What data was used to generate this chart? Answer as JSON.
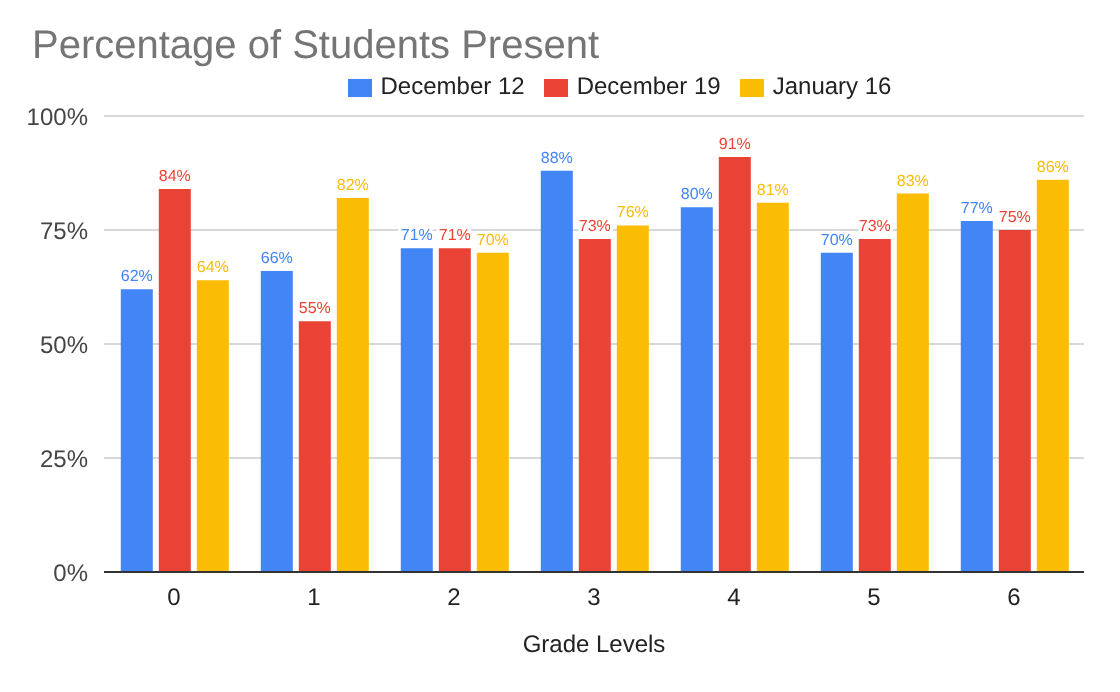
{
  "chart_data": {
    "type": "bar",
    "title": "Percentage of Students Present",
    "xlabel": "Grade Levels",
    "categories": [
      "0",
      "1",
      "2",
      "3",
      "4",
      "5",
      "6"
    ],
    "series": [
      {
        "name": "December 12",
        "color": "#4285f4",
        "values": [
          62,
          66,
          71,
          88,
          80,
          70,
          77
        ],
        "value_labels": [
          "62%",
          "66%",
          "71%",
          "88%",
          "80%",
          "70%",
          "77%"
        ]
      },
      {
        "name": "December 19",
        "color": "#ea4335",
        "values": [
          84,
          55,
          71,
          73,
          91,
          73,
          75
        ],
        "value_labels": [
          "84%",
          "55%",
          "71%",
          "73%",
          "91%",
          "73%",
          "75%"
        ]
      },
      {
        "name": "January 16",
        "color": "#fbbc04",
        "values": [
          64,
          82,
          70,
          76,
          81,
          83,
          86
        ],
        "value_labels": [
          "64%",
          "82%",
          "70%",
          "76%",
          "81%",
          "83%",
          "86%"
        ]
      }
    ],
    "ylim": [
      0,
      100
    ],
    "yticks": [
      {
        "value": 0,
        "label": "0%"
      },
      {
        "value": 25,
        "label": "25%"
      },
      {
        "value": 50,
        "label": "50%"
      },
      {
        "value": 75,
        "label": "75%"
      },
      {
        "value": 100,
        "label": "100%"
      }
    ],
    "grid": "y",
    "legend": "top"
  }
}
